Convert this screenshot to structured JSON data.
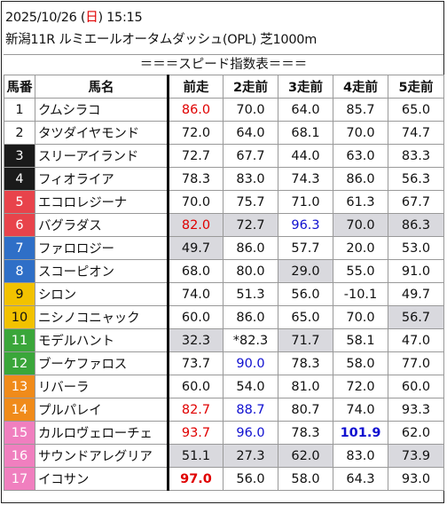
{
  "header": {
    "date_prefix": "2025/10/26 (",
    "weekday": "日",
    "date_suffix": ") 15:15",
    "race": "新潟11R ルミエールオータムダッシュ(OPL) 芝1000m"
  },
  "subtitle": "＝＝＝スピード指数表＝＝＝",
  "columns": [
    "馬番",
    "馬名",
    "前走",
    "2走前",
    "3走前",
    "4走前",
    "5走前"
  ],
  "colors": {
    "frame": [
      "#ffffff",
      "#1a1a1a",
      "#e8434b",
      "#2f6fc7",
      "#f2c200",
      "#3aa63a",
      "#f08b1a",
      "#f07fbf"
    ],
    "highlight": "#d9d9de",
    "red": "#e00000",
    "blue": "#1010d0"
  },
  "rows": [
    {
      "num": "1",
      "frame": 1,
      "name": "クムシラコ",
      "vals": [
        {
          "v": "86.0",
          "c": "red"
        },
        {
          "v": "70.0"
        },
        {
          "v": "64.0"
        },
        {
          "v": "85.7"
        },
        {
          "v": "65.0"
        }
      ]
    },
    {
      "num": "2",
      "frame": 1,
      "name": "タツダイヤモンド",
      "vals": [
        {
          "v": "72.0"
        },
        {
          "v": "64.0"
        },
        {
          "v": "68.1"
        },
        {
          "v": "70.0"
        },
        {
          "v": "74.7"
        }
      ]
    },
    {
      "num": "3",
      "frame": 2,
      "name": "スリーアイランド",
      "vals": [
        {
          "v": "72.7"
        },
        {
          "v": "67.7"
        },
        {
          "v": "44.0"
        },
        {
          "v": "63.0"
        },
        {
          "v": "83.3"
        }
      ]
    },
    {
      "num": "4",
      "frame": 2,
      "name": "フィオライア",
      "vals": [
        {
          "v": "78.3"
        },
        {
          "v": "83.0"
        },
        {
          "v": "74.3"
        },
        {
          "v": "86.0"
        },
        {
          "v": "56.3"
        }
      ]
    },
    {
      "num": "5",
      "frame": 3,
      "name": "エコロレジーナ",
      "vals": [
        {
          "v": "70.0"
        },
        {
          "v": "75.7"
        },
        {
          "v": "71.0"
        },
        {
          "v": "61.3"
        },
        {
          "v": "67.7"
        }
      ]
    },
    {
      "num": "6",
      "frame": 3,
      "name": "バグラダス",
      "vals": [
        {
          "v": "82.0",
          "c": "red",
          "hl": true
        },
        {
          "v": "72.7",
          "hl": true
        },
        {
          "v": "96.3",
          "c": "blue"
        },
        {
          "v": "70.0",
          "hl": true
        },
        {
          "v": "86.3",
          "hl": true
        }
      ]
    },
    {
      "num": "7",
      "frame": 4,
      "name": "ファロロジー",
      "vals": [
        {
          "v": "49.7",
          "hl": true
        },
        {
          "v": "86.0"
        },
        {
          "v": "57.7"
        },
        {
          "v": "20.0"
        },
        {
          "v": "53.0"
        }
      ]
    },
    {
      "num": "8",
      "frame": 4,
      "name": "スコーピオン",
      "vals": [
        {
          "v": "68.0"
        },
        {
          "v": "80.0"
        },
        {
          "v": "29.0",
          "hl": true
        },
        {
          "v": "55.0"
        },
        {
          "v": "91.0"
        }
      ]
    },
    {
      "num": "9",
      "frame": 5,
      "name": "シロン",
      "vals": [
        {
          "v": "74.0"
        },
        {
          "v": "51.3"
        },
        {
          "v": "56.0"
        },
        {
          "v": "-10.1"
        },
        {
          "v": "49.7"
        }
      ]
    },
    {
      "num": "10",
      "frame": 5,
      "name": "ニシノコニャック",
      "vals": [
        {
          "v": "60.0"
        },
        {
          "v": "86.0"
        },
        {
          "v": "65.0"
        },
        {
          "v": "70.0"
        },
        {
          "v": "56.7",
          "hl": true
        }
      ]
    },
    {
      "num": "11",
      "frame": 6,
      "name": "モデルハント",
      "vals": [
        {
          "v": "32.3",
          "hl": true
        },
        {
          "v": "*82.3"
        },
        {
          "v": "71.7",
          "hl": true
        },
        {
          "v": "58.1"
        },
        {
          "v": "47.0"
        }
      ]
    },
    {
      "num": "12",
      "frame": 6,
      "name": "ブーケファロス",
      "vals": [
        {
          "v": "73.7"
        },
        {
          "v": "90.0",
          "c": "blue"
        },
        {
          "v": "78.3"
        },
        {
          "v": "58.0"
        },
        {
          "v": "77.0"
        }
      ]
    },
    {
      "num": "13",
      "frame": 7,
      "name": "リバーラ",
      "vals": [
        {
          "v": "60.0"
        },
        {
          "v": "54.0"
        },
        {
          "v": "81.0"
        },
        {
          "v": "72.0"
        },
        {
          "v": "60.0"
        }
      ]
    },
    {
      "num": "14",
      "frame": 7,
      "name": "プルパレイ",
      "vals": [
        {
          "v": "82.7",
          "c": "red"
        },
        {
          "v": "88.7",
          "c": "blue"
        },
        {
          "v": "80.7"
        },
        {
          "v": "74.0"
        },
        {
          "v": "93.3"
        }
      ]
    },
    {
      "num": "15",
      "frame": 8,
      "name": "カルロヴェローチェ",
      "vals": [
        {
          "v": "93.7",
          "c": "red"
        },
        {
          "v": "96.0",
          "c": "blue"
        },
        {
          "v": "78.3"
        },
        {
          "v": "101.9",
          "c": "blue",
          "b": true
        },
        {
          "v": "62.0"
        }
      ]
    },
    {
      "num": "16",
      "frame": 8,
      "name": "サウンドアレグリア",
      "vals": [
        {
          "v": "51.1",
          "hl": true
        },
        {
          "v": "27.3",
          "hl": true
        },
        {
          "v": "62.0",
          "hl": true
        },
        {
          "v": "83.0"
        },
        {
          "v": "73.9",
          "hl": true
        }
      ]
    },
    {
      "num": "17",
      "frame": 8,
      "name": "イコサン",
      "vals": [
        {
          "v": "97.0",
          "c": "red",
          "b": true
        },
        {
          "v": "56.0"
        },
        {
          "v": "58.0"
        },
        {
          "v": "64.3"
        },
        {
          "v": "93.0"
        }
      ]
    }
  ]
}
